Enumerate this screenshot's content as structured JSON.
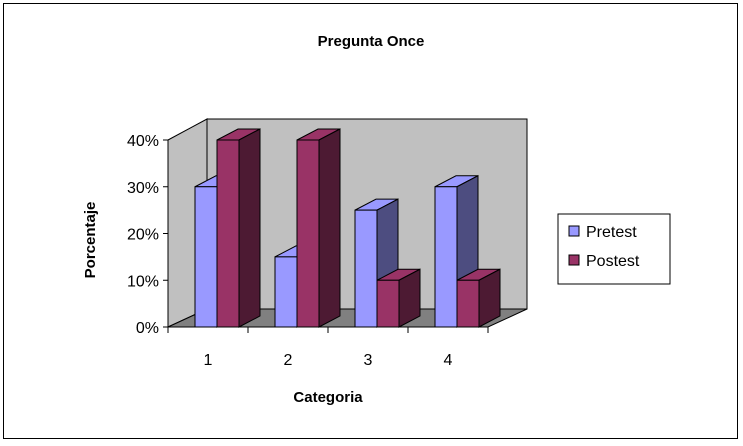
{
  "chart_data": {
    "type": "bar",
    "title": "Pregunta Once",
    "xlabel": "Categoria",
    "ylabel": "Porcentaje",
    "categories": [
      "1",
      "2",
      "3",
      "4"
    ],
    "ylim": [
      0,
      0.4
    ],
    "y_ticks": [
      "0%",
      "10%",
      "20%",
      "30%",
      "40%"
    ],
    "series": [
      {
        "name": "Pretest",
        "values": [
          0.3,
          0.15,
          0.25,
          0.3
        ],
        "color": "#9999ff"
      },
      {
        "name": "Postest",
        "values": [
          0.4,
          0.4,
          0.1,
          0.1
        ],
        "color": "#993366"
      }
    ],
    "three_d": true,
    "grid": false,
    "legend_position": "right",
    "wall_color": "#c0c0c0",
    "floor_color": "#808080"
  }
}
